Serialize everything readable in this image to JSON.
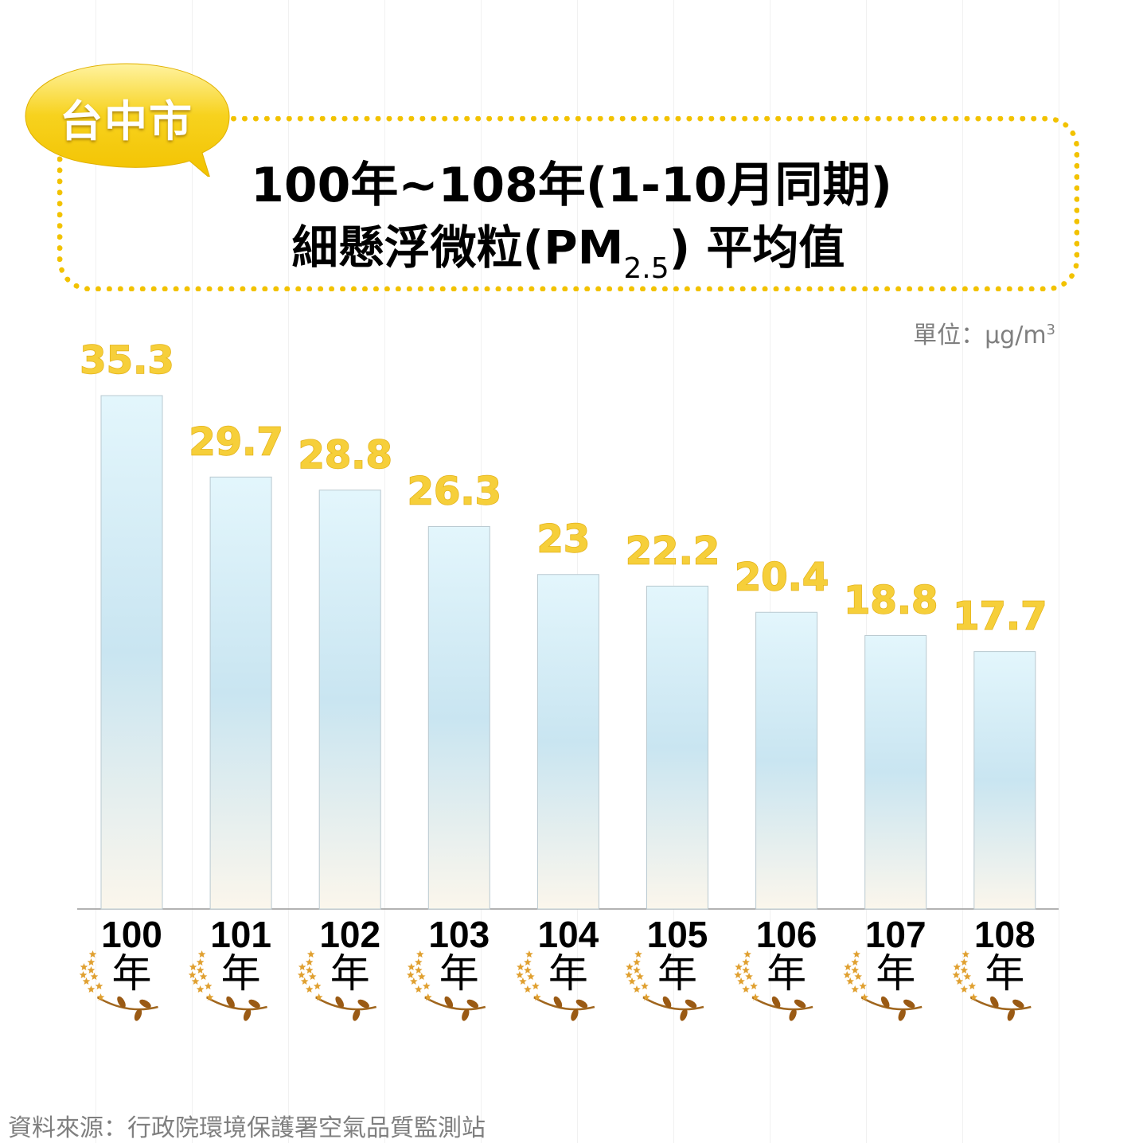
{
  "badge": {
    "label": "台中市",
    "color": "#f5c518"
  },
  "title": {
    "line1": "100年~108年(1-10月同期)",
    "line2_main": "細懸浮微粒(PM",
    "line2_sub": "2.5",
    "line2_end": ") 平均值"
  },
  "unit": {
    "prefix": "單位：µg/m",
    "sup": "3"
  },
  "source": "資料來源：行政院環境保護署空氣品質監測站",
  "chart_data": {
    "type": "bar",
    "categories": [
      "100",
      "101",
      "102",
      "103",
      "104",
      "105",
      "106",
      "107",
      "108"
    ],
    "category_suffix": "年",
    "values": [
      35.3,
      29.7,
      28.8,
      26.3,
      23,
      22.2,
      20.4,
      18.8,
      17.7
    ],
    "value_labels": [
      "35.3",
      "29.7",
      "28.8",
      "26.3",
      "23",
      "22.2",
      "20.4",
      "18.8",
      "17.7"
    ],
    "ylim": [
      0,
      35.3
    ],
    "grid": false,
    "bar_color": "#cfe8f3",
    "label_color": "#f6cf3a"
  }
}
